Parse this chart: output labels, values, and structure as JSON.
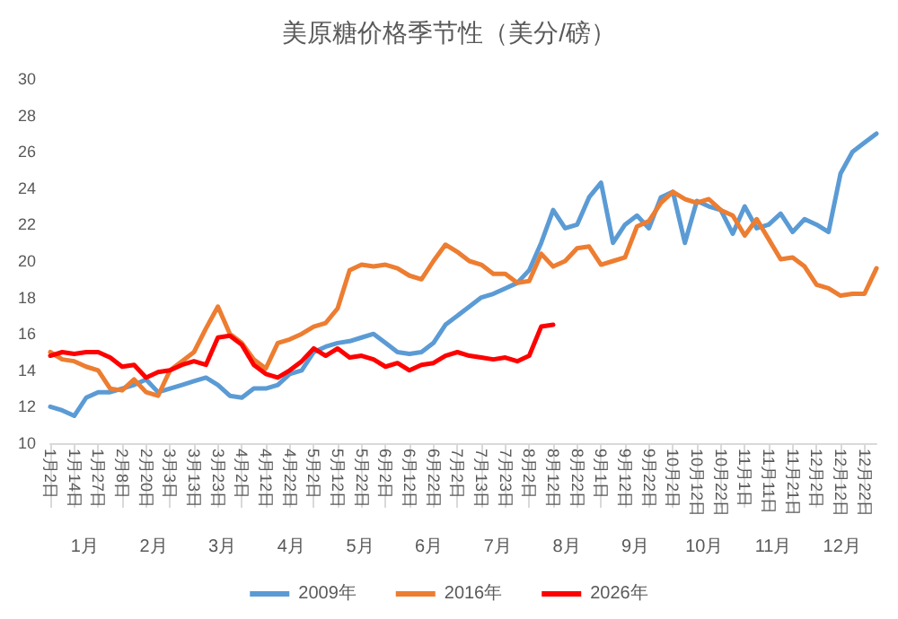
{
  "chart_data": {
    "type": "line",
    "title": "美原糖价格季节性（美分/磅）",
    "categories": [
      "1月2日",
      null,
      "1月14日",
      null,
      "1月27日",
      null,
      "2月8日",
      null,
      "2月20日",
      null,
      "3月3日",
      null,
      "3月13日",
      null,
      "3月23日",
      null,
      "4月2日",
      null,
      "4月12日",
      null,
      "4月22日",
      null,
      "5月2日",
      null,
      "5月12日",
      null,
      "5月22日",
      null,
      "6月2日",
      null,
      "6月12日",
      null,
      "6月22日",
      null,
      "7月2日",
      null,
      "7月13日",
      null,
      "7月23日",
      null,
      "8月2日",
      null,
      "8月12日",
      null,
      "8月22日",
      null,
      "9月1日",
      null,
      "9月12日",
      null,
      "9月22日",
      null,
      "10月2日",
      null,
      "10月12日",
      null,
      "10月22日",
      null,
      "11月1日",
      null,
      "11月11日",
      null,
      "11月21日",
      null,
      "12月2日",
      null,
      "12月12日",
      null,
      "12月22日",
      null
    ],
    "series": [
      {
        "name": "2009年",
        "color": "#5b9bd5",
        "values": [
          12.0,
          11.8,
          11.5,
          12.5,
          12.8,
          12.8,
          13.0,
          13.2,
          13.5,
          12.8,
          13.0,
          13.2,
          13.4,
          13.6,
          13.2,
          12.6,
          12.5,
          13.0,
          13.0,
          13.2,
          13.8,
          14.0,
          15.0,
          15.3,
          15.5,
          15.6,
          15.8,
          16.0,
          15.5,
          15.0,
          14.9,
          15.0,
          15.5,
          16.5,
          17.0,
          17.5,
          18.0,
          18.2,
          18.5,
          18.8,
          19.5,
          21.0,
          22.8,
          21.8,
          22.0,
          23.5,
          24.3,
          21.0,
          22.0,
          22.5,
          21.8,
          23.5,
          23.8,
          21.0,
          23.3,
          23.0,
          22.8,
          21.5,
          23.0,
          21.8,
          22.0,
          22.6,
          21.6,
          22.3,
          22.0,
          21.6,
          24.8,
          26.0,
          26.5,
          27.0
        ]
      },
      {
        "name": "2016年",
        "color": "#ed7d31",
        "values": [
          15.0,
          14.6,
          14.5,
          14.2,
          14.0,
          13.0,
          12.9,
          13.5,
          12.8,
          12.6,
          14.0,
          14.5,
          15.0,
          16.3,
          17.5,
          16.0,
          15.5,
          14.6,
          14.1,
          15.5,
          15.7,
          16.0,
          16.4,
          16.6,
          17.4,
          19.5,
          19.8,
          19.7,
          19.8,
          19.6,
          19.2,
          19.0,
          20.0,
          20.9,
          20.5,
          20.0,
          19.8,
          19.3,
          19.3,
          18.8,
          18.9,
          20.4,
          19.7,
          20.0,
          20.7,
          20.8,
          19.8,
          20.0,
          20.2,
          21.9,
          22.2,
          23.2,
          23.8,
          23.4,
          23.2,
          23.4,
          22.8,
          22.5,
          21.4,
          22.3,
          21.2,
          20.1,
          20.2,
          19.7,
          18.7,
          18.5,
          18.1,
          18.2,
          18.2,
          19.6
        ]
      },
      {
        "name": "2026年",
        "color": "#ff0000",
        "values": [
          14.8,
          15.0,
          14.9,
          15.0,
          15.0,
          14.7,
          14.2,
          14.3,
          13.6,
          13.9,
          14.0,
          14.3,
          14.5,
          14.3,
          15.8,
          15.9,
          15.4,
          14.3,
          13.8,
          13.6,
          14.0,
          14.5,
          15.2,
          14.8,
          15.2,
          14.7,
          14.8,
          14.6,
          14.2,
          14.4,
          14.0,
          14.3,
          14.4,
          14.8,
          15.0,
          14.8,
          14.7,
          14.6,
          14.7,
          14.5,
          14.8,
          16.4,
          16.5,
          null,
          null,
          null,
          null,
          null,
          null,
          null,
          null,
          null,
          null,
          null,
          null,
          null,
          null,
          null,
          null,
          null,
          null,
          null,
          null,
          null,
          null,
          null,
          null,
          null,
          null,
          null
        ]
      }
    ],
    "ylim": [
      10,
      30
    ],
    "yticks": [
      10,
      12,
      14,
      16,
      18,
      20,
      22,
      24,
      26,
      28,
      30
    ],
    "grid": false,
    "legend": "bottom",
    "marker": "none",
    "line_style": "solid",
    "annotations": [
      "1月",
      "2月",
      "3月",
      "4月",
      "5月",
      "6月",
      "7月",
      "8月",
      "9月",
      "10月",
      "11月",
      "12月"
    ]
  }
}
